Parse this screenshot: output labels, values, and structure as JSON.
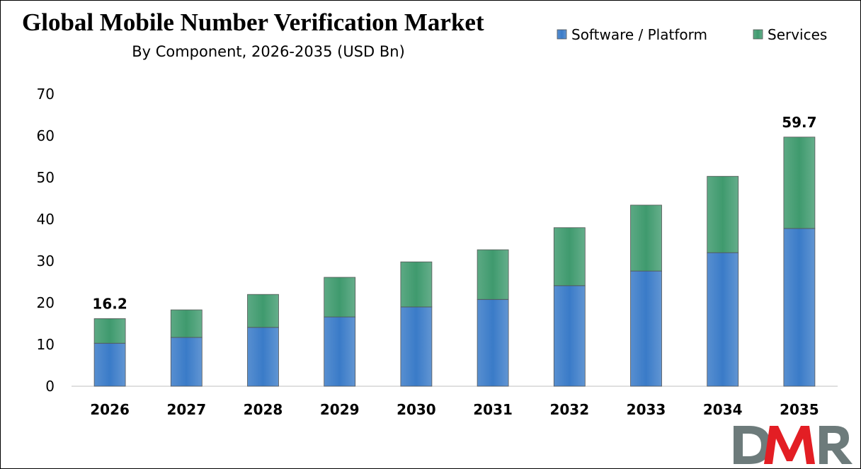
{
  "chart_data": {
    "type": "bar",
    "stacked": true,
    "title": "Global Mobile Number Verification Market",
    "subtitle": "By Component, 2026-2035 (USD Bn)",
    "categories": [
      "2026",
      "2027",
      "2028",
      "2029",
      "2030",
      "2031",
      "2032",
      "2033",
      "2034",
      "2035"
    ],
    "series": [
      {
        "name": "Software / Platform",
        "color": "#3a7bc8",
        "values": [
          10.3,
          11.7,
          14.1,
          16.6,
          19.0,
          20.8,
          24.1,
          27.6,
          32.0,
          37.8
        ]
      },
      {
        "name": "Services",
        "color": "#3f9a6e",
        "values": [
          5.9,
          6.6,
          7.9,
          9.5,
          10.8,
          11.9,
          13.9,
          15.8,
          18.3,
          21.9
        ]
      }
    ],
    "data_labels": [
      {
        "category": "2026",
        "text": "16.2"
      },
      {
        "category": "2035",
        "text": "59.7"
      }
    ],
    "ylim": [
      0,
      70
    ],
    "yticks": [
      0,
      10,
      20,
      30,
      40,
      50,
      60,
      70
    ],
    "grid": false,
    "legend_position": "top-right"
  },
  "logo": {
    "text": "DMR",
    "colors": [
      "#6d7b7b",
      "#e31e24"
    ]
  }
}
